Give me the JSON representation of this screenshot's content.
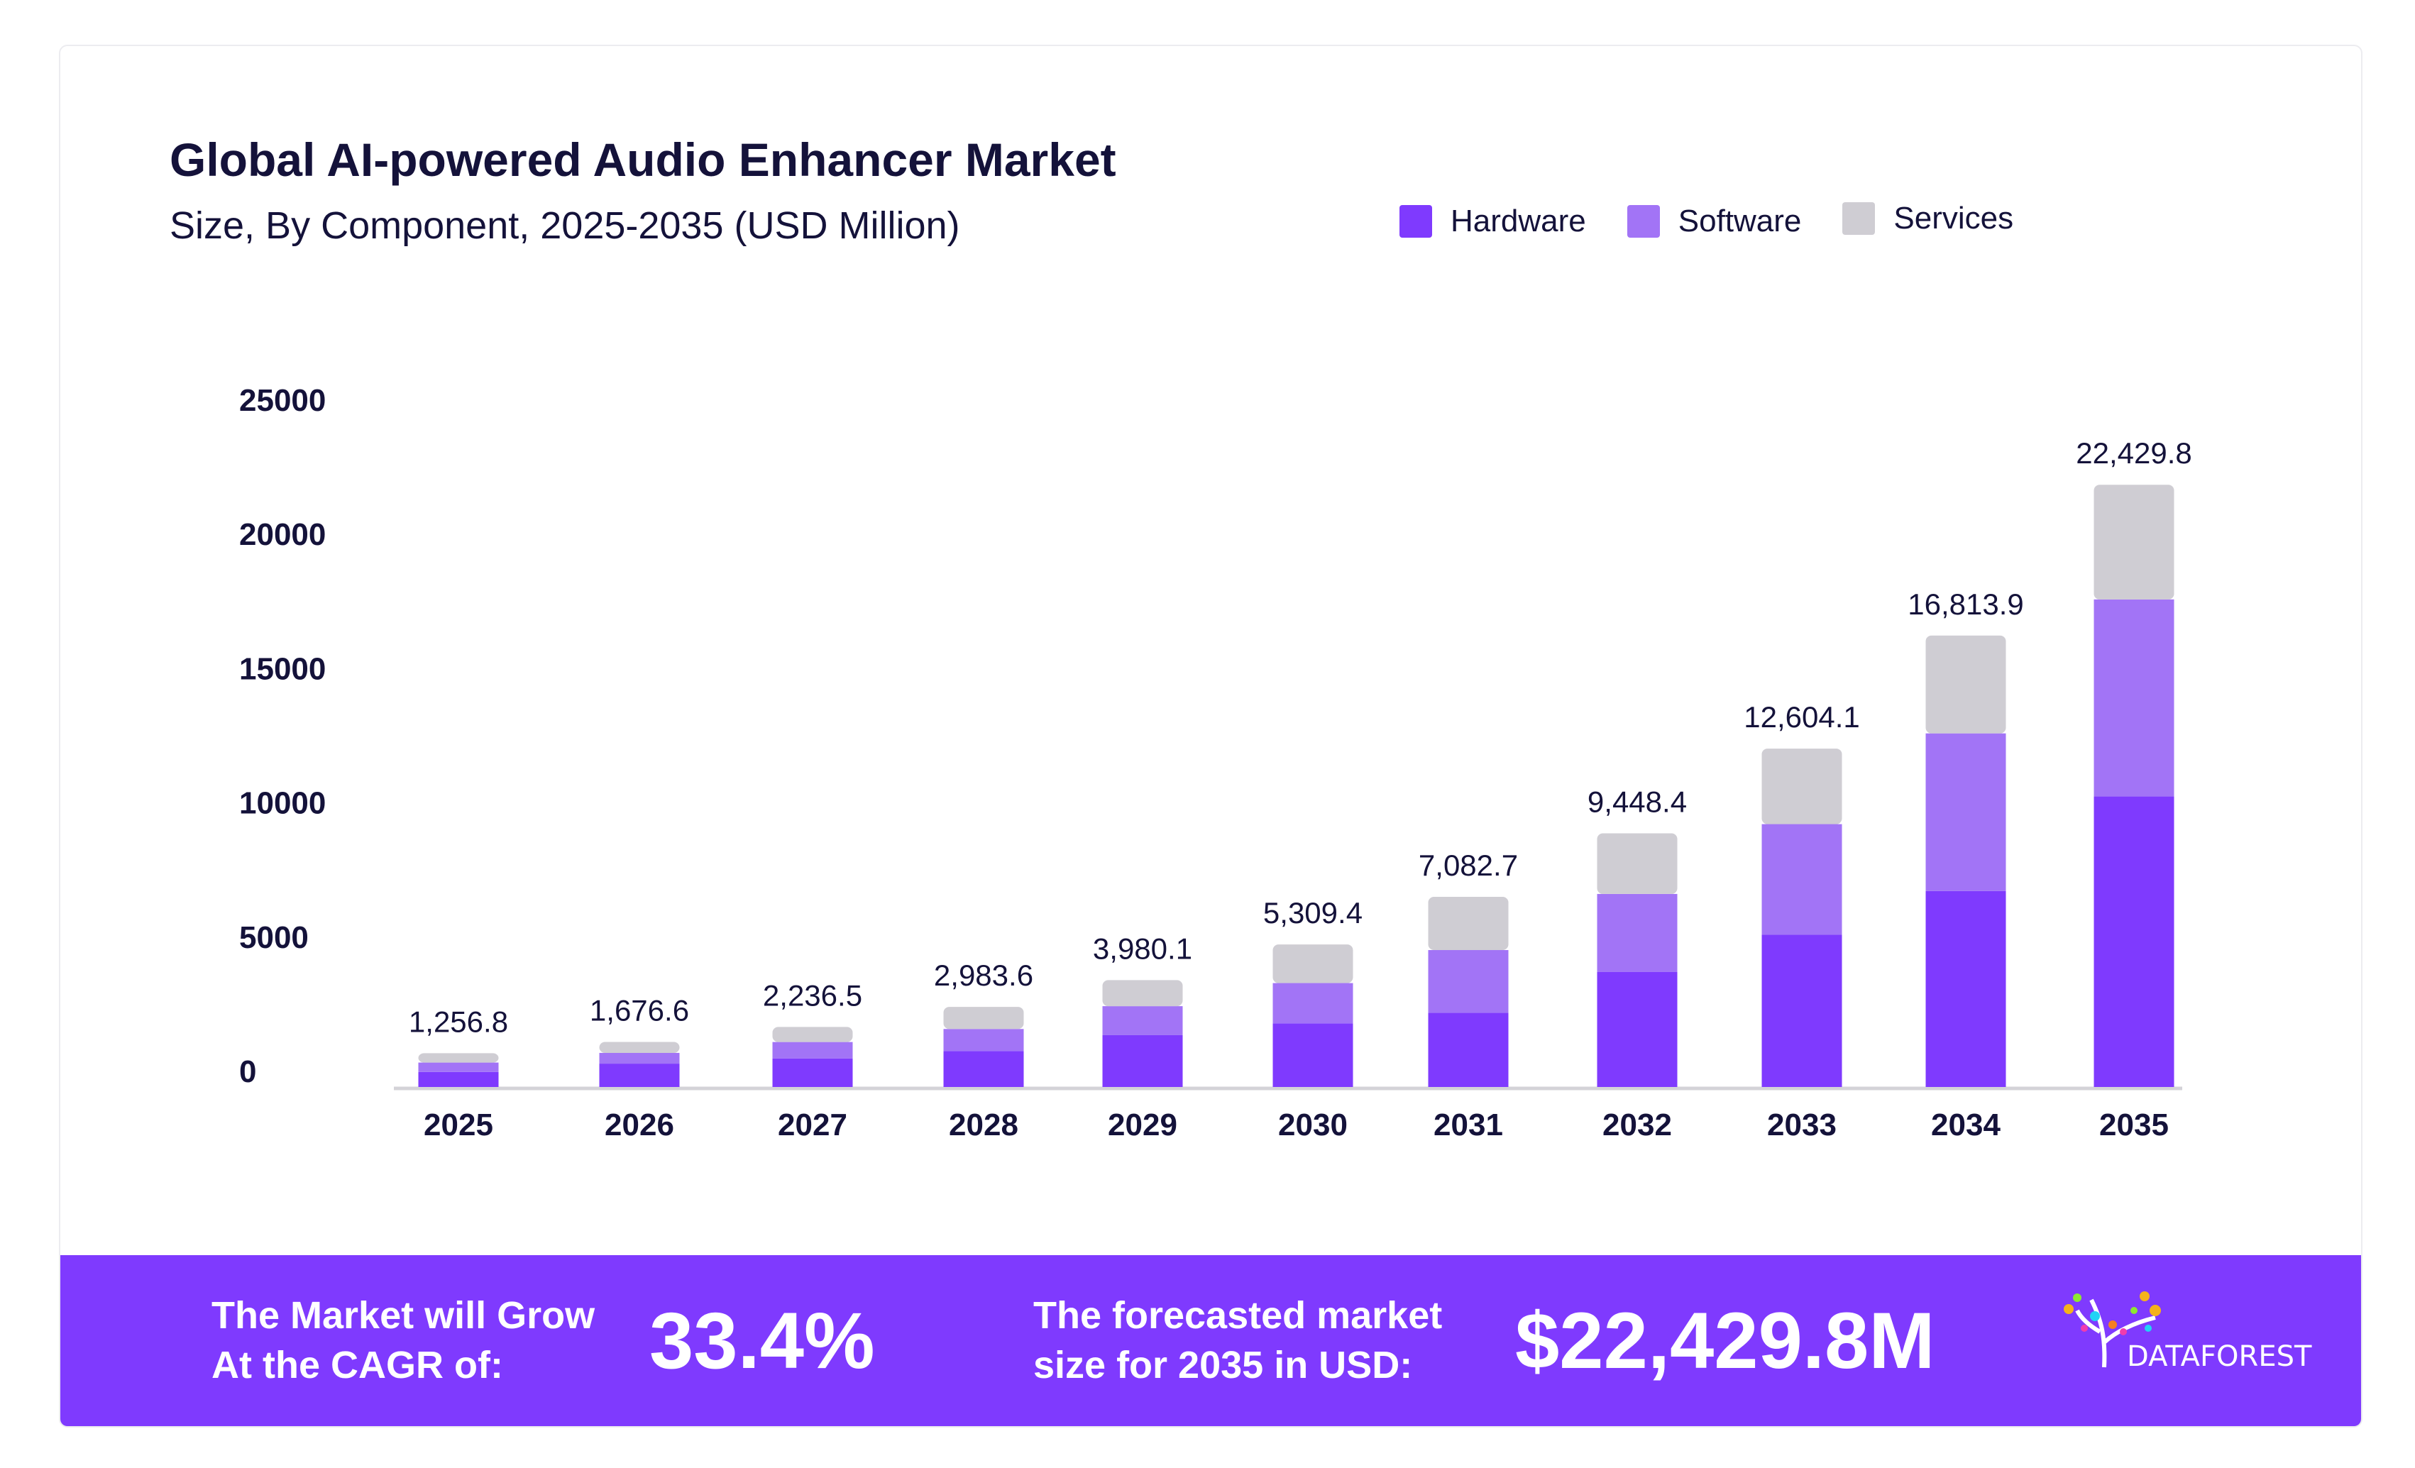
{
  "header": {
    "title": "Global AI-powered Audio Enhancer Market",
    "subtitle": "Size, By Component, 2025-2035 (USD Million)"
  },
  "legend": [
    {
      "label": "Hardware",
      "color": "#7f3afe"
    },
    {
      "label": "Software",
      "color": "#a274f6"
    },
    {
      "label": "Services",
      "color": "#cfcdd3"
    }
  ],
  "chart_data": {
    "type": "bar",
    "stacked": true,
    "title": "Global AI-powered Audio Enhancer Market",
    "subtitle": "Size, By Component, 2025-2035 (USD Million)",
    "xlabel": "",
    "ylabel": "",
    "ylim": [
      0,
      25000
    ],
    "yticks": [
      "0",
      "5000",
      "10000",
      "15000",
      "20000",
      "25000"
    ],
    "grid": false,
    "legend_position": "top-right",
    "categories": [
      "2025",
      "2026",
      "2027",
      "2028",
      "2029",
      "2030",
      "2031",
      "2032",
      "2033",
      "2034",
      "2035"
    ],
    "totals": [
      "1,256.8",
      "1,676.6",
      "2,236.5",
      "2,983.6",
      "3,980.1",
      "5,309.4",
      "7,082.7",
      "9,448.4",
      "12,604.1",
      "16,813.9",
      "22,429.8"
    ],
    "series": [
      {
        "name": "Hardware",
        "color": "#7f3afe",
        "values": [
          560,
          870,
          1060,
          1340,
          1930,
          2370,
          2760,
          4290,
          5670,
          7300,
          10820
        ]
      },
      {
        "name": "Software",
        "color": "#a274f6",
        "values": [
          350,
          400,
          615,
          820,
          1080,
          1500,
          2340,
          2900,
          4120,
          5870,
          7340
        ]
      },
      {
        "name": "Services",
        "color": "#cfcdd3",
        "values": [
          347,
          407,
          562,
          824,
          970,
          1439,
          1983,
          2258,
          2814,
          3644,
          4270
        ]
      }
    ]
  },
  "footer": {
    "cagr_label_1": "The Market will Grow",
    "cagr_label_2": "At the CAGR of:",
    "cagr_value": "33.4%",
    "forecast_label_1": "The forecasted market",
    "forecast_label_2": "size for 2035 in USD:",
    "forecast_value": "$22,429.8M",
    "logo_text": "DATAFOREST"
  }
}
